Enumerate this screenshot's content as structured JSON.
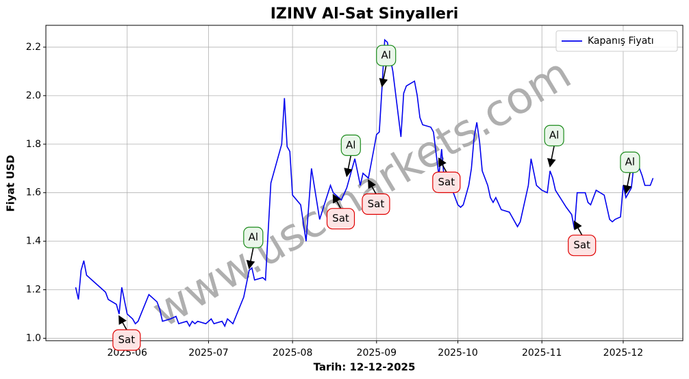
{
  "chart_data": {
    "type": "line",
    "title": "IZINV Al-Sat Sinyalleri",
    "xlabel": "Tarih: 12-12-2025",
    "ylabel": "Fiyat USD",
    "watermark": "www.uscmarkets.com",
    "legend": "upper right",
    "grid": true,
    "xlim": [
      "2025-05-02",
      "2025-12-23"
    ],
    "ylim": [
      0.99,
      2.29
    ],
    "xticks": [
      {
        "value": "2025-06-01",
        "label": "2025-06"
      },
      {
        "value": "2025-07-01",
        "label": "2025-07"
      },
      {
        "value": "2025-08-01",
        "label": "2025-08"
      },
      {
        "value": "2025-09-01",
        "label": "2025-09"
      },
      {
        "value": "2025-10-01",
        "label": "2025-10"
      },
      {
        "value": "2025-11-01",
        "label": "2025-11"
      },
      {
        "value": "2025-12-01",
        "label": "2025-12"
      }
    ],
    "yticks": [
      {
        "value": 1,
        "label": "1.0"
      },
      {
        "value": 1.2,
        "label": "1.2"
      },
      {
        "value": 1.4,
        "label": "1.4"
      },
      {
        "value": 1.6,
        "label": "1.6"
      },
      {
        "value": 1.8,
        "label": "1.8"
      },
      {
        "value": 2,
        "label": "2.0"
      },
      {
        "value": 2.2,
        "label": "2.2"
      }
    ],
    "x": [
      "2025-05-13",
      "2025-05-14",
      "2025-05-15",
      "2025-05-16",
      "2025-05-17",
      "2025-05-20",
      "2025-05-23",
      "2025-05-24",
      "2025-05-25",
      "2025-05-28",
      "2025-05-29",
      "2025-05-30",
      "2025-06-01",
      "2025-06-03",
      "2025-06-04",
      "2025-06-05",
      "2025-06-09",
      "2025-06-11",
      "2025-06-12",
      "2025-06-13",
      "2025-06-14",
      "2025-06-17",
      "2025-06-19",
      "2025-06-20",
      "2025-06-23",
      "2025-06-24",
      "2025-06-25",
      "2025-06-26",
      "2025-06-27",
      "2025-06-30",
      "2025-07-02",
      "2025-07-03",
      "2025-07-06",
      "2025-07-07",
      "2025-07-08",
      "2025-07-10",
      "2025-07-14",
      "2025-07-16",
      "2025-07-17",
      "2025-07-18",
      "2025-07-21",
      "2025-07-22",
      "2025-07-24",
      "2025-07-28",
      "2025-07-29",
      "2025-07-30",
      "2025-07-31",
      "2025-08-01",
      "2025-08-04",
      "2025-08-06",
      "2025-08-08",
      "2025-08-11",
      "2025-08-15",
      "2025-08-16",
      "2025-08-19",
      "2025-08-21",
      "2025-08-24",
      "2025-08-26",
      "2025-08-27",
      "2025-08-29",
      "2025-08-31",
      "2025-09-01",
      "2025-09-02",
      "2025-09-03",
      "2025-09-04",
      "2025-09-05",
      "2025-09-07",
      "2025-09-10",
      "2025-09-11",
      "2025-09-12",
      "2025-09-15",
      "2025-09-16",
      "2025-09-17",
      "2025-09-18",
      "2025-09-21",
      "2025-09-22",
      "2025-09-24",
      "2025-09-25",
      "2025-09-26",
      "2025-09-28",
      "2025-09-30",
      "2025-10-01",
      "2025-10-02",
      "2025-10-03",
      "2025-10-05",
      "2025-10-06",
      "2025-10-07",
      "2025-10-08",
      "2025-10-09",
      "2025-10-10",
      "2025-10-12",
      "2025-10-13",
      "2025-10-14",
      "2025-10-15",
      "2025-10-17",
      "2025-10-20",
      "2025-10-21",
      "2025-10-23",
      "2025-10-24",
      "2025-10-27",
      "2025-10-28",
      "2025-10-30",
      "2025-11-01",
      "2025-11-03",
      "2025-11-04",
      "2025-11-05",
      "2025-11-06",
      "2025-11-10",
      "2025-11-12",
      "2025-11-13",
      "2025-11-14",
      "2025-11-17",
      "2025-11-18",
      "2025-11-19",
      "2025-11-21",
      "2025-11-24",
      "2025-11-26",
      "2025-11-27",
      "2025-11-28",
      "2025-11-30",
      "2025-12-01",
      "2025-12-02",
      "2025-12-03",
      "2025-12-04",
      "2025-12-05",
      "2025-12-07",
      "2025-12-08",
      "2025-12-09",
      "2025-12-11",
      "2025-12-12"
    ],
    "series": [
      {
        "name": "Kapanış Fiyatı",
        "color": "#0000ee",
        "values": [
          1.21,
          1.16,
          1.28,
          1.32,
          1.26,
          1.23,
          1.2,
          1.19,
          1.16,
          1.14,
          1.1,
          1.21,
          1.1,
          1.08,
          1.06,
          1.07,
          1.18,
          1.16,
          1.15,
          1.12,
          1.07,
          1.08,
          1.09,
          1.06,
          1.07,
          1.05,
          1.07,
          1.06,
          1.07,
          1.06,
          1.08,
          1.06,
          1.07,
          1.05,
          1.08,
          1.06,
          1.17,
          1.28,
          1.29,
          1.24,
          1.25,
          1.24,
          1.64,
          1.8,
          1.99,
          1.79,
          1.77,
          1.59,
          1.55,
          1.4,
          1.7,
          1.49,
          1.63,
          1.6,
          1.57,
          1.62,
          1.74,
          1.63,
          1.68,
          1.66,
          1.78,
          1.84,
          1.85,
          2.03,
          2.23,
          2.22,
          2.1,
          1.83,
          2.01,
          2.04,
          2.06,
          2.0,
          1.91,
          1.88,
          1.87,
          1.85,
          1.67,
          1.78,
          1.65,
          1.64,
          1.58,
          1.55,
          1.54,
          1.55,
          1.63,
          1.7,
          1.83,
          1.89,
          1.81,
          1.69,
          1.63,
          1.58,
          1.56,
          1.58,
          1.53,
          1.52,
          1.5,
          1.46,
          1.48,
          1.63,
          1.74,
          1.63,
          1.61,
          1.6,
          1.69,
          1.66,
          1.61,
          1.54,
          1.51,
          1.45,
          1.6,
          1.6,
          1.56,
          1.55,
          1.61,
          1.59,
          1.49,
          1.48,
          1.49,
          1.5,
          1.63,
          1.58,
          1.6,
          1.62,
          1.72,
          1.7,
          1.67,
          1.63,
          1.63,
          1.66
        ]
      }
    ],
    "annotations": [
      {
        "text": "Sat",
        "x": "2025-05-29",
        "y": 1.1
      },
      {
        "text": "Al",
        "x": "2025-07-16",
        "y": 1.28
      },
      {
        "text": "Sat",
        "x": "2025-08-16",
        "y": 1.6
      },
      {
        "text": "Al",
        "x": "2025-08-21",
        "y": 1.66
      },
      {
        "text": "Sat",
        "x": "2025-08-29",
        "y": 1.66
      },
      {
        "text": "Al",
        "x": "2025-09-03",
        "y": 2.03
      },
      {
        "text": "Sat",
        "x": "2025-09-24",
        "y": 1.75
      },
      {
        "text": "Al",
        "x": "2025-11-04",
        "y": 1.7
      },
      {
        "text": "Sat",
        "x": "2025-11-13",
        "y": 1.49
      },
      {
        "text": "Al",
        "x": "2025-12-02",
        "y": 1.59
      }
    ]
  }
}
